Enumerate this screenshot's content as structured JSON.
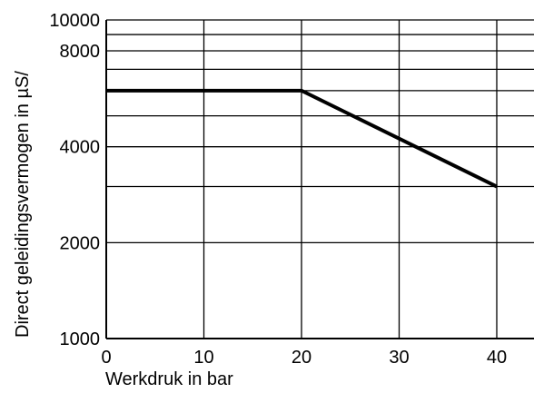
{
  "chart_data": {
    "type": "line",
    "xlabel": "Werkdruk in bar",
    "ylabel": "Direct geleidingsvermogen in  µS/",
    "x_ticks": [
      0,
      10,
      20,
      30,
      40
    ],
    "y_tick_labels": [
      {
        "value": 1000,
        "label": "1000"
      },
      {
        "value": 2000,
        "label": "2000"
      },
      {
        "value": 4000,
        "label": "4000"
      },
      {
        "value": 8000,
        "label": "8000"
      },
      {
        "value": 10000,
        "label": "10000"
      }
    ],
    "y_gridlines": [
      1000,
      2000,
      3000,
      4000,
      5000,
      6000,
      7000,
      8000,
      9000,
      10000
    ],
    "xlim": [
      0,
      40
    ],
    "ylim": [
      1000,
      10000
    ],
    "yscale": "log",
    "grid": true,
    "series": [
      {
        "points": [
          {
            "x": 0,
            "y": 6000
          },
          {
            "x": 20,
            "y": 6000
          },
          {
            "x": 40,
            "y": 3000
          }
        ]
      }
    ]
  }
}
